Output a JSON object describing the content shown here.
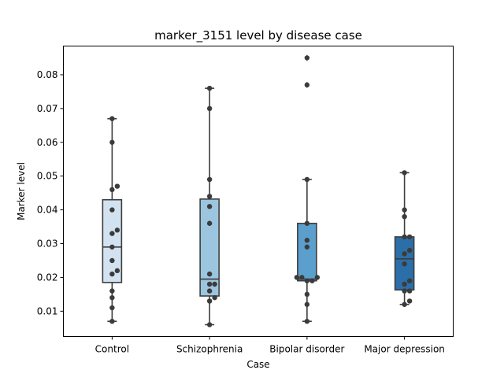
{
  "chart_data": {
    "type": "box",
    "title": "marker_3151 level by disease case",
    "xlabel": "Case",
    "ylabel": "Marker level",
    "ylim": [
      0.0025,
      0.0885
    ],
    "yticks": [
      0.01,
      0.02,
      0.03,
      0.04,
      0.05,
      0.06,
      0.07,
      0.08
    ],
    "ytick_labels": [
      "0.01",
      "0.02",
      "0.03",
      "0.04",
      "0.05",
      "0.06",
      "0.07",
      "0.08"
    ],
    "categories": [
      "Control",
      "Schizophrenia",
      "Bipolar disorder",
      "Major depression"
    ],
    "colors": [
      "#d2e2f0",
      "#9cc5df",
      "#5b9fcc",
      "#2b6ea8"
    ],
    "point_color": "#3b3b3b",
    "boxes": [
      {
        "whislo": 0.007,
        "q1": 0.0185,
        "med": 0.029,
        "q3": 0.043,
        "whishi": 0.067,
        "fliers": []
      },
      {
        "whislo": 0.006,
        "q1": 0.0145,
        "med": 0.0195,
        "q3": 0.0432,
        "whishi": 0.076,
        "fliers": []
      },
      {
        "whislo": 0.007,
        "q1": 0.019,
        "med": 0.0195,
        "q3": 0.036,
        "whishi": 0.049,
        "fliers": [
          0.077,
          0.085
        ]
      },
      {
        "whislo": 0.012,
        "q1": 0.0163,
        "med": 0.0255,
        "q3": 0.032,
        "whishi": 0.051,
        "fliers": []
      }
    ],
    "points": [
      [
        0.007,
        0.011,
        0.014,
        0.016,
        0.021,
        0.022,
        0.025,
        0.029,
        0.033,
        0.034,
        0.04,
        0.046,
        0.047,
        0.06,
        0.067
      ],
      [
        0.006,
        0.013,
        0.014,
        0.016,
        0.018,
        0.018,
        0.021,
        0.036,
        0.041,
        0.044,
        0.049,
        0.07,
        0.076
      ],
      [
        0.007,
        0.012,
        0.015,
        0.019,
        0.019,
        0.02,
        0.02,
        0.02,
        0.029,
        0.031,
        0.036,
        0.049,
        0.077,
        0.085
      ],
      [
        0.012,
        0.013,
        0.016,
        0.016,
        0.018,
        0.019,
        0.024,
        0.027,
        0.028,
        0.032,
        0.032,
        0.038,
        0.04,
        0.051
      ]
    ]
  }
}
